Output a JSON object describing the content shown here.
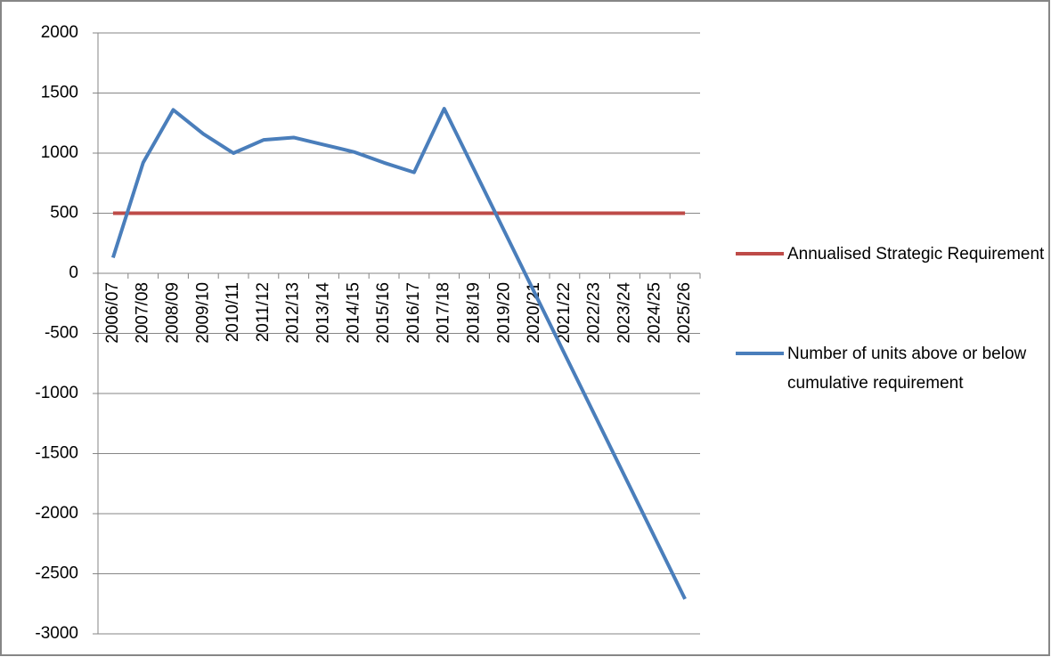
{
  "chart_data": {
    "type": "line",
    "categories": [
      "2006/07",
      "2007/08",
      "2008/09",
      "2009/10",
      "2010/11",
      "2011/12",
      "2012/13",
      "2013/14",
      "2014/15",
      "2015/16",
      "2016/17",
      "2017/18",
      "2018/19",
      "2019/20",
      "2020/21",
      "2021/22",
      "2022/23",
      "2023/24",
      "2024/25",
      "2025/26"
    ],
    "series": [
      {
        "name": "Annualised Strategic Requirement",
        "color": "#be4b48",
        "values": [
          500,
          500,
          500,
          500,
          500,
          500,
          500,
          500,
          500,
          500,
          500,
          500,
          500,
          500,
          500,
          500,
          500,
          500,
          500,
          500
        ]
      },
      {
        "name": "Number of units above or below cumulative requirement",
        "color": "#4a7ebb",
        "values": [
          130,
          920,
          1360,
          1160,
          1000,
          1110,
          1130,
          1070,
          1010,
          920,
          840,
          1370,
          860,
          350,
          -160,
          -670,
          -1180,
          -1690,
          -2200,
          -2710
        ]
      }
    ],
    "ylim": [
      -3000,
      2000
    ],
    "yticks": [
      -3000,
      -2500,
      -2000,
      -1500,
      -1000,
      -500,
      0,
      500,
      1000,
      1500,
      2000
    ],
    "grid": true,
    "legend": "right"
  }
}
